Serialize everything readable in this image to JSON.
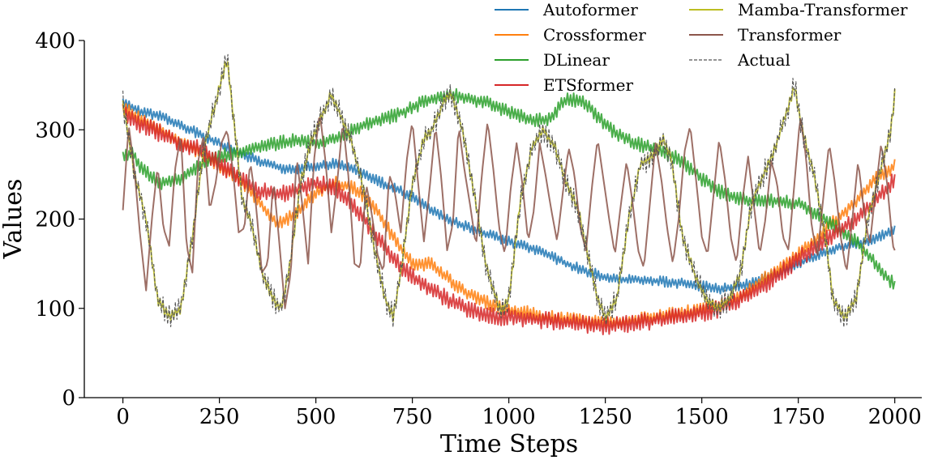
{
  "chart_data": {
    "type": "line",
    "title": "",
    "xlabel": "Time Steps",
    "ylabel": "Values",
    "xlim": [
      -100,
      2070
    ],
    "ylim": [
      0,
      400
    ],
    "xticks": [
      0,
      250,
      500,
      750,
      1000,
      1250,
      1500,
      1750,
      2000
    ],
    "yticks": [
      0,
      100,
      200,
      300,
      400
    ],
    "grid": false,
    "legend_position": "top-right",
    "series": [
      {
        "name": "Autoformer",
        "color": "#1f77b4",
        "style": "solid",
        "noise": 6,
        "x": [
          0,
          50,
          100,
          150,
          200,
          250,
          300,
          350,
          400,
          450,
          500,
          550,
          600,
          650,
          700,
          750,
          800,
          850,
          900,
          950,
          1000,
          1050,
          1100,
          1150,
          1200,
          1250,
          1300,
          1350,
          1400,
          1450,
          1500,
          1550,
          1600,
          1650,
          1700,
          1750,
          1800,
          1850,
          1900,
          1950,
          2000
        ],
        "values": [
          330,
          320,
          315,
          305,
          295,
          285,
          275,
          265,
          258,
          255,
          260,
          262,
          255,
          245,
          235,
          225,
          210,
          198,
          190,
          182,
          175,
          168,
          160,
          150,
          142,
          135,
          132,
          132,
          130,
          128,
          125,
          122,
          125,
          132,
          140,
          150,
          160,
          168,
          172,
          178,
          190
        ]
      },
      {
        "name": "Crossformer",
        "color": "#ff7f0e",
        "style": "solid",
        "noise": 8,
        "x": [
          0,
          50,
          100,
          150,
          200,
          250,
          300,
          350,
          400,
          450,
          500,
          550,
          600,
          650,
          700,
          750,
          800,
          850,
          900,
          950,
          1000,
          1050,
          1100,
          1150,
          1200,
          1250,
          1300,
          1350,
          1400,
          1450,
          1500,
          1550,
          1600,
          1650,
          1700,
          1750,
          1800,
          1850,
          1900,
          1950,
          2000
        ],
        "values": [
          325,
          310,
          300,
          285,
          275,
          260,
          245,
          220,
          195,
          205,
          230,
          240,
          235,
          215,
          180,
          150,
          150,
          130,
          115,
          105,
          98,
          95,
          90,
          88,
          85,
          85,
          85,
          88,
          92,
          95,
          98,
          105,
          115,
          130,
          145,
          160,
          180,
          200,
          220,
          245,
          260
        ]
      },
      {
        "name": "DLinear",
        "color": "#2ca02c",
        "style": "solid",
        "noise": 8,
        "x": [
          0,
          25,
          50,
          100,
          150,
          200,
          250,
          300,
          350,
          400,
          450,
          500,
          550,
          600,
          650,
          700,
          750,
          800,
          850,
          900,
          950,
          1000,
          1050,
          1100,
          1150,
          1200,
          1250,
          1300,
          1350,
          1400,
          1450,
          1500,
          1550,
          1600,
          1650,
          1700,
          1750,
          1800,
          1850,
          1900,
          1950,
          2000
        ],
        "values": [
          270,
          275,
          255,
          240,
          245,
          260,
          270,
          275,
          280,
          285,
          288,
          285,
          290,
          300,
          310,
          315,
          325,
          335,
          340,
          335,
          330,
          320,
          312,
          310,
          335,
          330,
          305,
          290,
          282,
          275,
          265,
          245,
          230,
          222,
          220,
          220,
          218,
          205,
          190,
          175,
          150,
          125
        ]
      },
      {
        "name": "ETSformer",
        "color": "#d62728",
        "style": "solid",
        "noise": 10,
        "x": [
          0,
          50,
          100,
          150,
          200,
          250,
          300,
          350,
          400,
          450,
          500,
          550,
          600,
          650,
          700,
          750,
          800,
          850,
          900,
          950,
          1000,
          1050,
          1100,
          1150,
          1200,
          1250,
          1300,
          1350,
          1400,
          1450,
          1500,
          1550,
          1600,
          1650,
          1700,
          1750,
          1800,
          1850,
          1900,
          1950,
          2000
        ],
        "values": [
          320,
          305,
          295,
          285,
          278,
          262,
          245,
          232,
          228,
          232,
          240,
          235,
          215,
          185,
          155,
          135,
          120,
          108,
          98,
          92,
          90,
          88,
          86,
          84,
          82,
          80,
          82,
          85,
          88,
          92,
          95,
          100,
          110,
          122,
          138,
          155,
          170,
          185,
          200,
          220,
          245
        ]
      },
      {
        "name": "Mamba-Transformer",
        "color": "#bcbd22",
        "style": "solid",
        "noise": 6,
        "x": [
          0,
          30,
          60,
          90,
          120,
          150,
          180,
          210,
          240,
          270,
          290,
          310,
          330,
          360,
          390,
          410,
          430,
          460,
          490,
          520,
          540,
          560,
          590,
          620,
          650,
          680,
          700,
          720,
          750,
          780,
          800,
          830,
          850,
          880,
          910,
          940,
          960,
          980,
          1000,
          1030,
          1060,
          1090,
          1120,
          1150,
          1180,
          1210,
          1230,
          1250,
          1280,
          1310,
          1340,
          1370,
          1400,
          1420,
          1450,
          1480,
          1510,
          1540,
          1570,
          1600,
          1630,
          1660,
          1690,
          1720,
          1740,
          1760,
          1790,
          1820,
          1840,
          1870,
          1900,
          1930,
          1960,
          1990,
          2000
        ],
        "values": [
          330,
          250,
          200,
          110,
          90,
          100,
          180,
          280,
          330,
          380,
          300,
          220,
          200,
          140,
          110,
          100,
          140,
          240,
          290,
          320,
          340,
          320,
          290,
          240,
          170,
          110,
          90,
          140,
          240,
          290,
          300,
          330,
          340,
          300,
          230,
          150,
          120,
          95,
          110,
          220,
          280,
          300,
          280,
          240,
          210,
          150,
          110,
          90,
          110,
          200,
          260,
          270,
          290,
          270,
          180,
          140,
          110,
          100,
          110,
          140,
          220,
          250,
          280,
          320,
          350,
          300,
          250,
          180,
          110,
          90,
          110,
          200,
          250,
          300,
          340
        ]
      },
      {
        "name": "Transformer",
        "color": "#8c564b",
        "style": "solid",
        "noise": 0,
        "x": [
          0,
          15,
          30,
          45,
          60,
          75,
          90,
          105,
          120,
          135,
          150,
          165,
          180,
          195,
          210,
          225,
          240,
          255,
          270,
          285,
          300,
          315,
          330,
          345,
          360,
          375,
          390,
          405,
          420,
          435,
          450,
          465,
          480,
          495,
          510,
          525,
          540,
          555,
          570,
          585,
          600,
          615,
          630,
          645,
          660,
          675,
          690,
          705,
          720,
          735,
          750,
          765,
          780,
          795,
          810,
          825,
          840,
          855,
          870,
          885,
          900,
          915,
          930,
          945,
          960,
          975,
          990,
          1005,
          1020,
          1035,
          1050,
          1065,
          1080,
          1095,
          1110,
          1125,
          1140,
          1155,
          1170,
          1185,
          1200,
          1215,
          1230,
          1245,
          1260,
          1275,
          1290,
          1305,
          1320,
          1335,
          1350,
          1365,
          1380,
          1395,
          1410,
          1425,
          1440,
          1455,
          1470,
          1485,
          1500,
          1515,
          1530,
          1545,
          1560,
          1575,
          1590,
          1605,
          1620,
          1635,
          1650,
          1665,
          1680,
          1695,
          1710,
          1725,
          1740,
          1755,
          1770,
          1785,
          1800,
          1815,
          1830,
          1845,
          1860,
          1875,
          1890,
          1905,
          1920,
          1935,
          1950,
          1965,
          1980,
          1995,
          2000
        ],
        "values": [
          210,
          305,
          255,
          180,
          120,
          200,
          260,
          190,
          170,
          255,
          295,
          170,
          140,
          265,
          295,
          210,
          240,
          285,
          300,
          255,
          185,
          190,
          265,
          215,
          140,
          150,
          245,
          175,
          100,
          140,
          270,
          215,
          150,
          265,
          320,
          265,
          185,
          240,
          310,
          245,
          150,
          145,
          240,
          205,
          160,
          140,
          250,
          230,
          185,
          265,
          310,
          240,
          175,
          235,
          305,
          245,
          165,
          195,
          305,
          255,
          215,
          170,
          250,
          310,
          255,
          190,
          160,
          235,
          285,
          240,
          175,
          210,
          285,
          250,
          210,
          175,
          230,
          280,
          250,
          190,
          165,
          235,
          290,
          245,
          200,
          160,
          215,
          265,
          220,
          165,
          145,
          215,
          285,
          245,
          190,
          150,
          200,
          275,
          305,
          245,
          180,
          160,
          225,
          290,
          245,
          180,
          150,
          220,
          270,
          215,
          160,
          200,
          265,
          240,
          180,
          165,
          240,
          315,
          270,
          190,
          160,
          225,
          285,
          240,
          180,
          140,
          200,
          265,
          210,
          170,
          230,
          285,
          240,
          170,
          165
        ]
      },
      {
        "name": "Actual",
        "color": "#555555",
        "style": "dashed",
        "noise": 14,
        "x": [
          0,
          30,
          60,
          90,
          120,
          150,
          180,
          210,
          240,
          270,
          290,
          310,
          330,
          360,
          390,
          410,
          430,
          460,
          490,
          520,
          540,
          560,
          590,
          620,
          650,
          680,
          700,
          720,
          750,
          780,
          800,
          830,
          850,
          880,
          910,
          940,
          960,
          980,
          1000,
          1030,
          1060,
          1090,
          1120,
          1150,
          1180,
          1210,
          1230,
          1250,
          1280,
          1310,
          1340,
          1370,
          1400,
          1420,
          1450,
          1480,
          1510,
          1540,
          1570,
          1600,
          1630,
          1660,
          1690,
          1720,
          1740,
          1760,
          1790,
          1820,
          1840,
          1870,
          1900,
          1930,
          1960,
          1990,
          2000
        ],
        "values": [
          330,
          250,
          200,
          110,
          90,
          100,
          180,
          280,
          330,
          380,
          300,
          220,
          200,
          140,
          110,
          100,
          140,
          240,
          290,
          320,
          340,
          320,
          290,
          240,
          170,
          110,
          90,
          140,
          240,
          290,
          300,
          330,
          340,
          300,
          230,
          150,
          120,
          95,
          110,
          220,
          280,
          300,
          280,
          240,
          210,
          150,
          110,
          90,
          110,
          200,
          260,
          270,
          290,
          270,
          180,
          140,
          110,
          100,
          110,
          140,
          220,
          250,
          280,
          320,
          350,
          300,
          250,
          180,
          110,
          90,
          110,
          200,
          250,
          300,
          340
        ]
      }
    ]
  }
}
